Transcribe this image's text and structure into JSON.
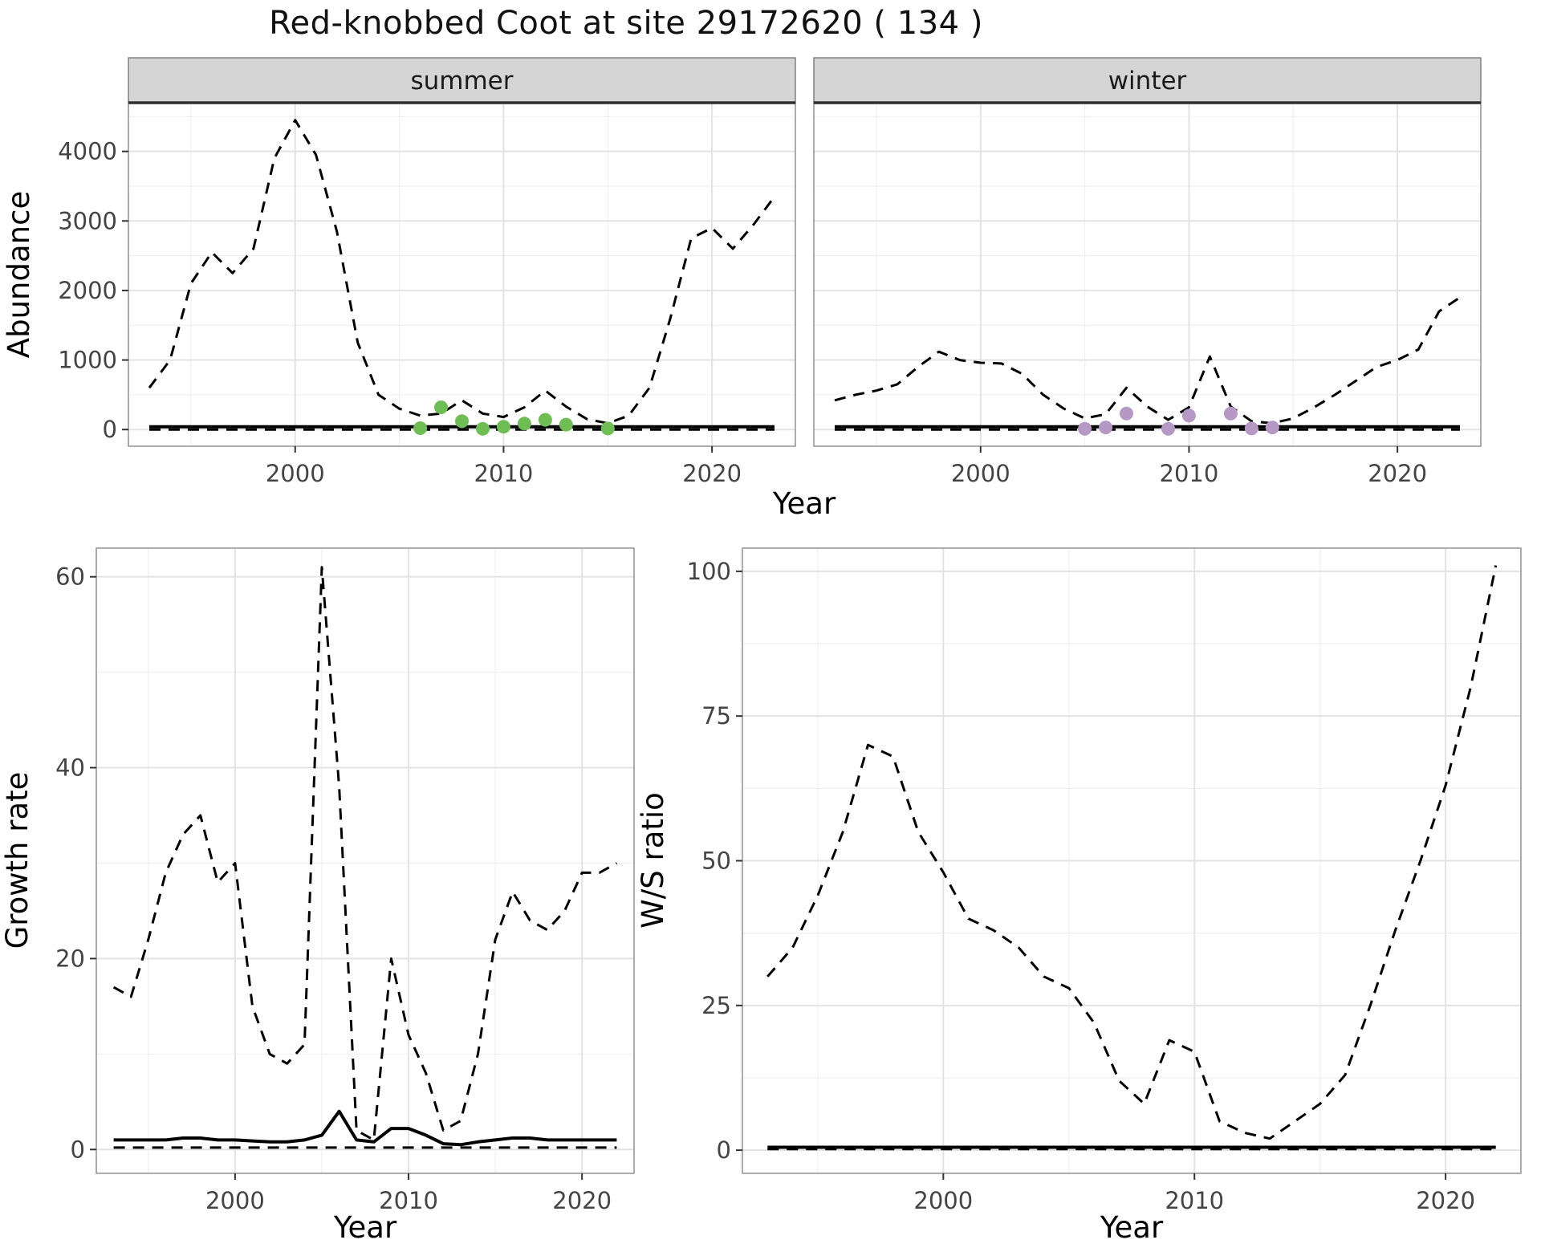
{
  "title": "Red-knobbed Coot at site 29172620 ( 134 )",
  "colors": {
    "summer_points": "#6fbe54",
    "winter_points": "#b698c5",
    "line": "#000000",
    "grid_major": "#e3e3e3",
    "grid_minor": "#f0f0f0",
    "panel_border": "#8a8a8a",
    "strip_fill": "#d5d5d5",
    "axis_text": "#444444"
  },
  "chart_data": [
    {
      "id": "abundance_summer",
      "type": "line",
      "facet": "summer",
      "xlabel": "Year",
      "ylabel": "Abundance",
      "xlim": [
        1992,
        2024
      ],
      "ylim": [
        -240,
        4700
      ],
      "xticks": [
        2000,
        2010,
        2020
      ],
      "yticks": [
        0,
        1000,
        2000,
        3000,
        4000
      ],
      "x": [
        1993,
        1994,
        1995,
        1996,
        1997,
        1998,
        1999,
        2000,
        2001,
        2002,
        2003,
        2004,
        2005,
        2006,
        2007,
        2008,
        2009,
        2010,
        2011,
        2012,
        2013,
        2014,
        2015,
        2016,
        2017,
        2018,
        2019,
        2020,
        2021,
        2022,
        2023
      ],
      "series": [
        {
          "name": "upper_ci",
          "style": "dashed",
          "y": [
            600,
            1000,
            2100,
            2550,
            2250,
            2600,
            3900,
            4450,
            3950,
            2850,
            1250,
            500,
            300,
            200,
            230,
            420,
            230,
            180,
            320,
            560,
            330,
            150,
            90,
            200,
            600,
            1600,
            2750,
            2900,
            2600,
            2950,
            3350
          ]
        },
        {
          "name": "estimate",
          "style": "solid",
          "y_const": 40
        },
        {
          "name": "lower_ci",
          "style": "dashed",
          "y_const": 0
        },
        {
          "name": "observed_counts",
          "style": "points",
          "color_key": "summer_points",
          "x": [
            2006,
            2007,
            2008,
            2009,
            2010,
            2011,
            2012,
            2013,
            2015
          ],
          "y": [
            20,
            320,
            120,
            10,
            40,
            85,
            140,
            70,
            15
          ]
        }
      ]
    },
    {
      "id": "abundance_winter",
      "type": "line",
      "facet": "winter",
      "xlabel": "Year",
      "ylabel": "Abundance",
      "xlim": [
        1992,
        2024
      ],
      "ylim": [
        -240,
        4700
      ],
      "xticks": [
        2000,
        2010,
        2020
      ],
      "yticks": [
        0,
        1000,
        2000,
        3000,
        4000
      ],
      "x": [
        1993,
        1994,
        1995,
        1996,
        1997,
        1998,
        1999,
        2000,
        2001,
        2002,
        2003,
        2004,
        2005,
        2006,
        2007,
        2008,
        2009,
        2010,
        2011,
        2012,
        2013,
        2014,
        2015,
        2016,
        2017,
        2018,
        2019,
        2020,
        2021,
        2022,
        2023
      ],
      "series": [
        {
          "name": "upper_ci",
          "style": "dashed",
          "y": [
            420,
            500,
            560,
            650,
            900,
            1120,
            1000,
            960,
            950,
            800,
            500,
            300,
            160,
            220,
            600,
            330,
            140,
            320,
            1050,
            330,
            120,
            90,
            160,
            320,
            500,
            700,
            900,
            1000,
            1150,
            1700,
            1900
          ]
        },
        {
          "name": "estimate",
          "style": "solid",
          "y_const": 40
        },
        {
          "name": "lower_ci",
          "style": "dashed",
          "y_const": 0
        },
        {
          "name": "observed_counts",
          "style": "points",
          "color_key": "winter_points",
          "x": [
            2005,
            2006,
            2007,
            2009,
            2010,
            2012,
            2013,
            2014
          ],
          "y": [
            10,
            30,
            230,
            10,
            200,
            230,
            15,
            30
          ]
        }
      ]
    },
    {
      "id": "growth_rate",
      "type": "line",
      "facet": null,
      "xlabel": "Year",
      "ylabel": "Growth rate",
      "xlim": [
        1992,
        2023
      ],
      "ylim": [
        -2.5,
        63
      ],
      "xticks": [
        2000,
        2010,
        2020
      ],
      "yticks": [
        0,
        20,
        40,
        60
      ],
      "x": [
        1993,
        1994,
        1995,
        1996,
        1997,
        1998,
        1999,
        2000,
        2001,
        2002,
        2003,
        2004,
        2005,
        2006,
        2007,
        2008,
        2009,
        2010,
        2011,
        2012,
        2013,
        2014,
        2015,
        2016,
        2017,
        2018,
        2019,
        2020,
        2021,
        2022
      ],
      "series": [
        {
          "name": "upper_ci",
          "style": "dashed",
          "y": [
            17,
            16,
            22,
            29,
            33,
            35,
            28,
            30,
            15,
            10,
            9,
            11,
            61,
            38,
            2,
            1,
            20,
            12,
            8,
            2,
            3,
            10,
            22,
            27,
            24,
            23,
            25,
            29,
            29,
            30
          ]
        },
        {
          "name": "estimate",
          "style": "solid",
          "y": [
            1,
            1,
            1,
            1,
            1.2,
            1.2,
            1,
            1,
            0.9,
            0.8,
            0.8,
            1,
            1.5,
            4,
            1,
            0.8,
            2.2,
            2.2,
            1.5,
            0.6,
            0.5,
            0.8,
            1,
            1.2,
            1.2,
            1,
            1,
            1,
            1,
            1
          ]
        },
        {
          "name": "lower_ci",
          "style": "dashed",
          "y_const": 0.2
        }
      ]
    },
    {
      "id": "ws_ratio",
      "type": "line",
      "facet": null,
      "xlabel": "Year",
      "ylabel": "W/S ratio",
      "xlim": [
        1992,
        2023
      ],
      "ylim": [
        -4,
        104
      ],
      "xticks": [
        2000,
        2010,
        2020
      ],
      "yticks": [
        0,
        25,
        50,
        75,
        100
      ],
      "x": [
        1993,
        1994,
        1995,
        1996,
        1997,
        1998,
        1999,
        2000,
        2001,
        2002,
        2003,
        2004,
        2005,
        2006,
        2007,
        2008,
        2009,
        2010,
        2011,
        2012,
        2013,
        2014,
        2015,
        2016,
        2017,
        2018,
        2019,
        2020,
        2021,
        2022
      ],
      "series": [
        {
          "name": "upper_ci",
          "style": "dashed",
          "y": [
            30,
            35,
            44,
            55,
            70,
            68,
            55,
            48,
            40,
            38,
            35,
            30,
            28,
            22,
            12,
            8,
            19,
            17,
            5,
            3,
            2,
            5,
            8,
            13,
            25,
            38,
            50,
            63,
            80,
            101
          ]
        },
        {
          "name": "estimate",
          "style": "solid",
          "y_const": 0.5
        },
        {
          "name": "lower_ci",
          "style": "dashed",
          "y_const": 0.2
        }
      ]
    }
  ]
}
